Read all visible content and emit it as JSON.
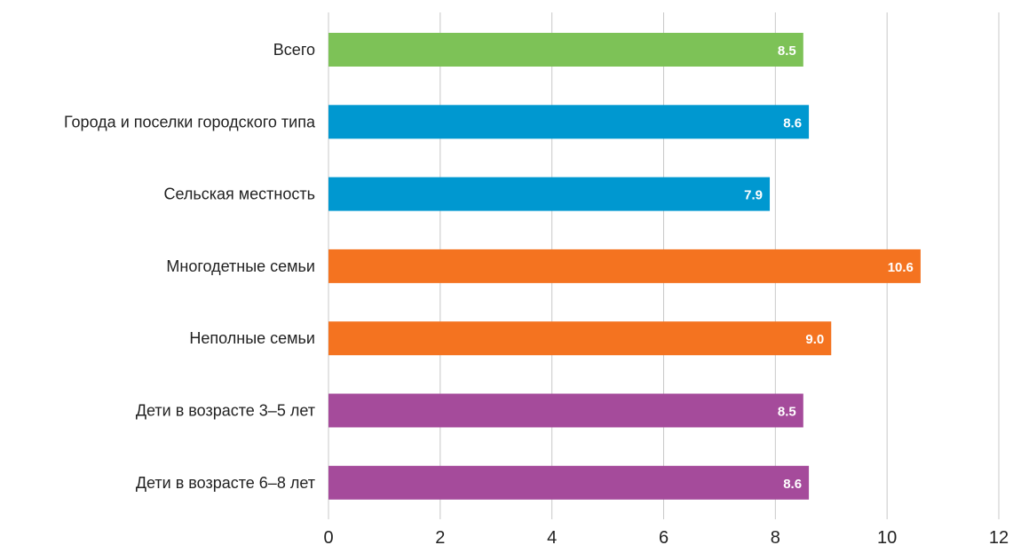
{
  "chart_data": {
    "type": "bar",
    "orientation": "horizontal",
    "title": "",
    "xlabel": "",
    "ylabel": "",
    "categories": [
      "Всего",
      "Города и поселки городского типа",
      "Сельская местность",
      "Многодетные семьи",
      "Неполные семьи",
      "Дети в возрасте 3–5 лет",
      "Дети в возрасте 6–8 лет"
    ],
    "values": [
      8.5,
      8.6,
      7.9,
      10.6,
      9.0,
      8.5,
      8.6
    ],
    "value_labels": [
      "8.5",
      "8.6",
      "7.9",
      "10.6",
      "9.0",
      "8.5",
      "8.6"
    ],
    "bar_colors": [
      "#7dc257",
      "#0098d0",
      "#0098d0",
      "#f47320",
      "#f47320",
      "#a54b9b",
      "#a54b9b"
    ],
    "xlim": [
      0,
      12
    ],
    "xticks": [
      "0",
      "2",
      "4",
      "6",
      "8",
      "10",
      "12"
    ],
    "grid": true,
    "legend": "none"
  }
}
